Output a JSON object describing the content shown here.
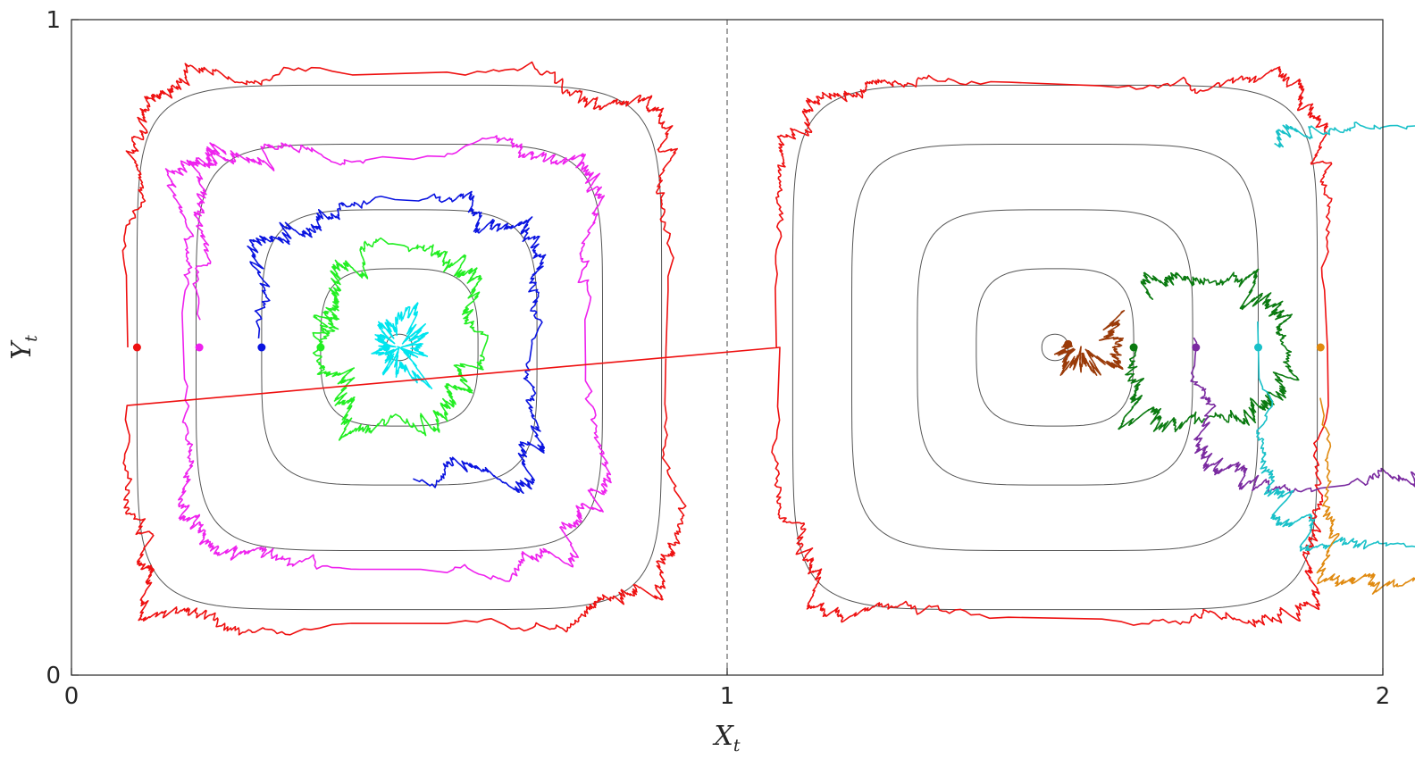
{
  "chart_data": {
    "type": "line",
    "title": "",
    "xlabel": "X",
    "xlabel_sub": "t",
    "ylabel": "Y",
    "ylabel_sub": "t",
    "xlim": [
      0,
      2
    ],
    "ylim": [
      0,
      1
    ],
    "xticks": [
      "0",
      "1",
      "2"
    ],
    "yticks": [
      "0",
      "1"
    ],
    "grid": false,
    "legend": "none",
    "divider": {
      "x": 1,
      "style": "dashed",
      "color": "#666666"
    },
    "contours": {
      "color": "#555555",
      "cells": [
        {
          "cx": 0.5,
          "cy": 0.5,
          "levels": [
            0.02,
            0.12,
            0.21,
            0.31,
            0.4
          ]
        },
        {
          "cx": 1.5,
          "cy": 0.5,
          "levels": [
            0.02,
            0.12,
            0.21,
            0.31,
            0.4
          ]
        }
      ]
    },
    "series": [
      {
        "color": "#00e5ee",
        "start": [
          0.48,
          0.5
        ],
        "turns": 1.0,
        "r0": 0.02,
        "r1": 0.035,
        "roughness": 0.012,
        "dir": 1
      },
      {
        "color": "#22ee22",
        "start": [
          0.38,
          0.5
        ],
        "turns": 1.05,
        "r0": 0.12,
        "r1": 0.115,
        "roughness": 0.012,
        "dir": -1
      },
      {
        "color": "#0a14e0",
        "start": [
          0.29,
          0.5
        ],
        "turns": 0.75,
        "r0": 0.21,
        "r1": 0.215,
        "roughness": 0.012,
        "dir": -1
      },
      {
        "color": "#ee22ee",
        "start": [
          0.195,
          0.5
        ],
        "turns": 1.15,
        "r0": 0.305,
        "r1": 0.33,
        "roughness": 0.012,
        "dir": -1
      },
      {
        "color": "#ee1010",
        "start": [
          0.1,
          0.5
        ],
        "turns": 2.0,
        "r0": 0.4,
        "r1": 0.4,
        "roughness": 0.012,
        "dir": -1,
        "fig8": true
      },
      {
        "color": "#9a3a08",
        "start": [
          1.52,
          0.505
        ],
        "turns": 0.6,
        "r0": 0.02,
        "r1": 0.045,
        "roughness": 0.012,
        "dir": 1
      },
      {
        "color": "#0a7a10",
        "start": [
          1.62,
          0.5
        ],
        "turns": 0.9,
        "r0": 0.12,
        "r1": 0.11,
        "roughness": 0.012,
        "dir": 1
      },
      {
        "color": "#7a2aa0",
        "start": [
          1.715,
          0.5
        ],
        "turns": 0.7,
        "r0": 0.21,
        "r1": 0.215,
        "roughness": 0.012,
        "dir": 1
      },
      {
        "color": "#18c0c8",
        "start": [
          1.81,
          0.5
        ],
        "turns": 0.85,
        "r0": 0.305,
        "r1": 0.33,
        "roughness": 0.012,
        "dir": 1
      },
      {
        "color": "#e08a10",
        "start": [
          1.905,
          0.5
        ],
        "turns": 0.65,
        "r0": 0.4,
        "r1": 0.34,
        "roughness": 0.012,
        "dir": 1
      }
    ]
  }
}
